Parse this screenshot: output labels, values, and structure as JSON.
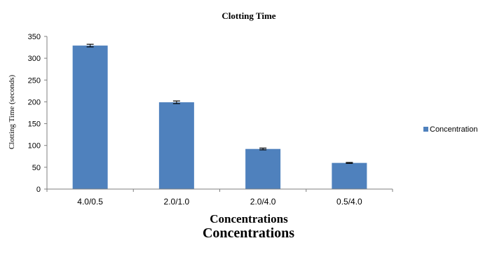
{
  "chart_data": {
    "type": "bar",
    "title": "Clotting Time",
    "xlabel": "Concentrations",
    "ylabel": "Clotting Time (seconds)",
    "categories": [
      "4.0/0.5",
      "2.0/1.0",
      "2.0/4.0",
      "0.5/4.0"
    ],
    "series": [
      {
        "name": "Concentration",
        "values": [
          329,
          199,
          92,
          60
        ],
        "errors": [
          3,
          3,
          2,
          1
        ],
        "color": "#4f81bd"
      }
    ],
    "ylim": [
      0,
      350
    ],
    "yticks": [
      "0",
      "50",
      "100",
      "150",
      "200",
      "250",
      "300",
      "350"
    ],
    "grid": false,
    "legend": "right"
  },
  "caption": "Concentrations"
}
